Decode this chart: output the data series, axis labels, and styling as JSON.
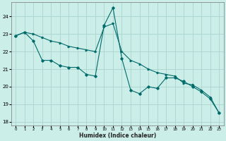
{
  "xlabel": "Humidex (Indice chaleur)",
  "bg_color": "#cceee8",
  "grid_color": "#aad4ce",
  "line_color": "#006b6b",
  "xlim": [
    -0.5,
    23.5
  ],
  "ylim": [
    17.8,
    24.8
  ],
  "yticks": [
    18,
    19,
    20,
    21,
    22,
    23,
    24
  ],
  "xticks": [
    0,
    1,
    2,
    3,
    4,
    5,
    6,
    7,
    8,
    9,
    10,
    11,
    12,
    13,
    14,
    15,
    16,
    17,
    18,
    19,
    20,
    21,
    22,
    23
  ],
  "line1_x": [
    0,
    1,
    2,
    3,
    4,
    5,
    6,
    7,
    8,
    9,
    10,
    11,
    12,
    13,
    14,
    15,
    16,
    17,
    18,
    19,
    20,
    21,
    22,
    23
  ],
  "line1_y": [
    22.9,
    23.1,
    23.0,
    22.8,
    22.6,
    22.5,
    22.3,
    22.2,
    22.1,
    22.0,
    23.4,
    23.6,
    22.0,
    21.5,
    21.3,
    21.0,
    20.8,
    20.7,
    20.6,
    20.2,
    20.1,
    19.8,
    19.4,
    18.5
  ],
  "line2_x": [
    0,
    1,
    2,
    3,
    4,
    5,
    6,
    7,
    8,
    9,
    10,
    11,
    12,
    13,
    14,
    15,
    16,
    17,
    18,
    19,
    20,
    21,
    22,
    23
  ],
  "line2_y": [
    22.9,
    23.1,
    22.6,
    21.5,
    21.5,
    21.2,
    21.1,
    21.1,
    20.7,
    20.6,
    23.5,
    24.5,
    21.6,
    19.8,
    19.6,
    20.0,
    19.9,
    20.5,
    20.5,
    20.3,
    20.0,
    19.7,
    19.3,
    18.5
  ]
}
